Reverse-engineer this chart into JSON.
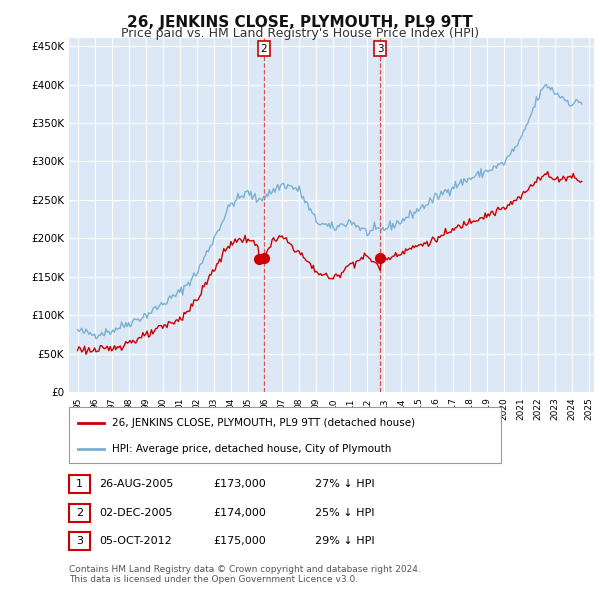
{
  "title": "26, JENKINS CLOSE, PLYMOUTH, PL9 9TT",
  "subtitle": "Price paid vs. HM Land Registry's House Price Index (HPI)",
  "title_fontsize": 11,
  "subtitle_fontsize": 9,
  "background_color": "#ffffff",
  "plot_bg_color": "#dce8f5",
  "grid_color": "#ffffff",
  "red_color": "#cc0000",
  "blue_color": "#7ab0d4",
  "ylim": [
    0,
    460000
  ],
  "yticks": [
    0,
    50000,
    100000,
    150000,
    200000,
    250000,
    300000,
    350000,
    400000,
    450000
  ],
  "ytick_labels": [
    "£0",
    "£50K",
    "£100K",
    "£150K",
    "£200K",
    "£250K",
    "£300K",
    "£350K",
    "£400K",
    "£450K"
  ],
  "transactions": [
    {
      "date": 2005.646,
      "price": 173000,
      "label": "1"
    },
    {
      "date": 2005.921,
      "price": 174000,
      "label": "2"
    },
    {
      "date": 2012.754,
      "price": 175000,
      "label": "3"
    }
  ],
  "vlines": [
    {
      "x": 2005.921,
      "label": "2"
    },
    {
      "x": 2012.754,
      "label": "3"
    }
  ],
  "table_rows": [
    {
      "num": "1",
      "date": "26-AUG-2005",
      "price": "£173,000",
      "hpi": "27% ↓ HPI"
    },
    {
      "num": "2",
      "date": "02-DEC-2005",
      "price": "£174,000",
      "hpi": "25% ↓ HPI"
    },
    {
      "num": "3",
      "date": "05-OCT-2012",
      "price": "£175,000",
      "hpi": "29% ↓ HPI"
    }
  ],
  "legend_entries": [
    {
      "label": "26, JENKINS CLOSE, PLYMOUTH, PL9 9TT (detached house)",
      "color": "#cc0000"
    },
    {
      "label": "HPI: Average price, detached house, City of Plymouth",
      "color": "#7ab0d4"
    }
  ],
  "footer": "Contains HM Land Registry data © Crown copyright and database right 2024.\nThis data is licensed under the Open Government Licence v3.0.",
  "xtick_short": [
    "95",
    "96",
    "97",
    "98",
    "99",
    "00",
    "01",
    "02",
    "03",
    "04",
    "05",
    "06",
    "07",
    "08",
    "09",
    "10",
    "11",
    "12",
    "13",
    "14"
  ],
  "xtick_full": [
    "2015",
    "2016",
    "2017",
    "2018",
    "2019",
    "2020",
    "2021",
    "2022",
    "2023",
    "2024",
    "2025"
  ]
}
